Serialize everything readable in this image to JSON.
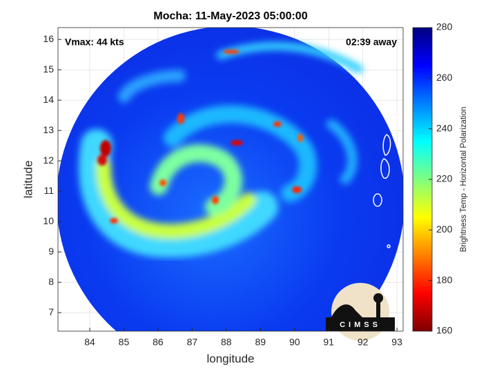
{
  "chart_data": {
    "type": "image",
    "title": "Mocha: 11-May-2023 05:00:00",
    "xlabel": "longitude",
    "ylabel": "latitude",
    "xlim": [
      83.07,
      93.18
    ],
    "ylim": [
      6.39,
      16.39
    ],
    "xticks": [
      84,
      85,
      86,
      87,
      88,
      89,
      90,
      91,
      92,
      93
    ],
    "yticks": [
      7,
      8,
      9,
      10,
      11,
      12,
      13,
      14,
      15,
      16
    ],
    "grid": true,
    "annotations": [
      "Vmax: 44 kts",
      "02:39 away"
    ],
    "colorbar": {
      "label": "Brightness Temp - Horizontal Polarization",
      "lim": [
        160,
        280
      ],
      "ticks": [
        160,
        180,
        200,
        220,
        240,
        260,
        280
      ],
      "colormap": "jet",
      "reversed": true
    },
    "logo": "CIMSS"
  }
}
